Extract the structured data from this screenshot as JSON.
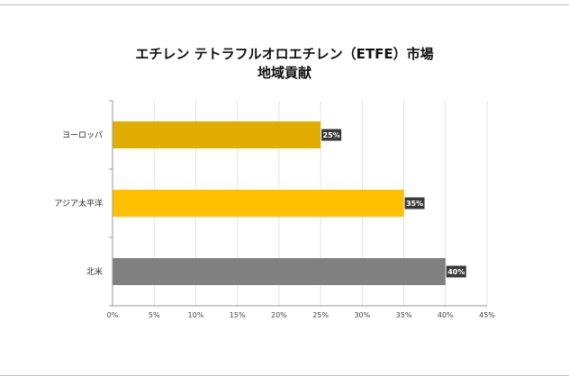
{
  "chart_data": {
    "type": "bar",
    "orientation": "horizontal",
    "title_line1": "エチレン テトラフルオロエチレン（ETFE）市場",
    "title_line2": "地域貢献",
    "categories": [
      "ヨーロッパ",
      "アジア太平洋",
      "北米"
    ],
    "values": [
      25,
      35,
      40
    ],
    "data_labels": [
      "25%",
      "35%",
      "40%"
    ],
    "bar_colors": [
      "#E1AD01",
      "#FFC000",
      "#808080"
    ],
    "xlim": [
      0,
      45
    ],
    "xticks": [
      "0%",
      "5%",
      "10%",
      "15%",
      "20%",
      "25%",
      "30%",
      "35%",
      "40%",
      "45%"
    ],
    "grid": true,
    "legend": "none"
  }
}
